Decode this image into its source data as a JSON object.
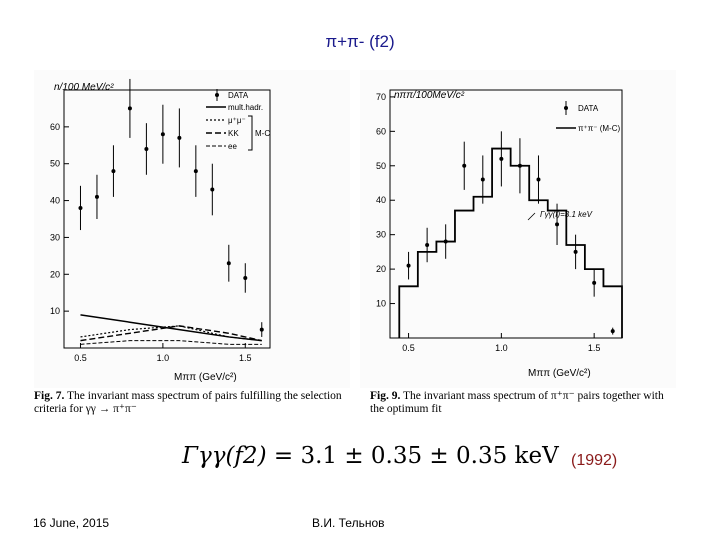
{
  "slide": {
    "title": "π+π- (f2)",
    "year": "(1992)",
    "footer_date": "16 June, 2015",
    "footer_author": "В.И. Тельнов"
  },
  "formula": {
    "lhs": "Γγγ(f2)",
    "text": "= 3.1 ± 0.35 ± 0.35 keV"
  },
  "figures": [
    {
      "caption_label": "Fig. 7.",
      "caption_text": " The invariant mass spectrum of pairs fulfilling the selection criteria for γγ → π⁺π⁻",
      "ylabel": "n/100 MeV/c²",
      "xlabel": "Mππ (GeV/c²)",
      "legend": [
        "DATA",
        "mult.hadr.",
        "μ⁺μ⁻",
        "KK",
        "ee",
        "M-C"
      ]
    },
    {
      "caption_label": "Fig. 9.",
      "caption_text": " The invariant mass spectrum of π⁺π⁻ pairs together with the optimum fit",
      "ylabel": "nππ/100MeV/c²",
      "xlabel": "Mππ (GeV/c²)",
      "legend": [
        "DATA",
        "π⁺π⁻ (M-C)"
      ],
      "annotation": "Γγγ(f)=3.1 keV"
    }
  ],
  "chart_data": [
    {
      "type": "scatter",
      "x_ticks": [
        "0.5",
        "1.0",
        "1.5"
      ],
      "y_ticks": [
        "10",
        "20",
        "30",
        "40",
        "50",
        "60"
      ],
      "xlim": [
        0.4,
        1.65
      ],
      "ylim": [
        0,
        70
      ],
      "grid": false,
      "legend_position": "top-right",
      "series": [
        {
          "name": "DATA",
          "x": [
            0.5,
            0.6,
            0.7,
            0.8,
            0.9,
            1.0,
            1.1,
            1.2,
            1.3,
            1.4,
            1.5,
            1.6
          ],
          "y": [
            38,
            41,
            48,
            65,
            54,
            58,
            57,
            48,
            43,
            23,
            19,
            5
          ],
          "err": [
            6,
            6,
            7,
            8,
            7,
            8,
            8,
            7,
            7,
            5,
            4,
            2
          ]
        },
        {
          "name": "mult.hadr.",
          "x": [
            0.5,
            0.8,
            1.1,
            1.4,
            1.6
          ],
          "y": [
            9,
            7,
            5,
            3,
            2
          ]
        },
        {
          "name": "μ⁺μ⁻",
          "x": [
            0.5,
            0.8,
            1.1,
            1.4,
            1.6
          ],
          "y": [
            3,
            5,
            6,
            3,
            2
          ]
        },
        {
          "name": "KK",
          "x": [
            0.5,
            0.8,
            1.1,
            1.4,
            1.6
          ],
          "y": [
            2,
            4,
            6,
            4,
            2
          ]
        },
        {
          "name": "ee",
          "x": [
            0.5,
            0.8,
            1.1,
            1.4,
            1.6
          ],
          "y": [
            1,
            2,
            2,
            1,
            1
          ]
        }
      ]
    },
    {
      "type": "line",
      "x_ticks": [
        "0.5",
        "1.0",
        "1.5"
      ],
      "y_ticks": [
        "10",
        "20",
        "30",
        "40",
        "50",
        "60",
        "70"
      ],
      "xlim": [
        0.4,
        1.65
      ],
      "ylim": [
        0,
        72
      ],
      "grid": false,
      "legend_position": "top-right",
      "series": [
        {
          "name": "DATA",
          "x": [
            0.5,
            0.6,
            0.7,
            0.8,
            0.9,
            1.0,
            1.1,
            1.2,
            1.3,
            1.4,
            1.5,
            1.6
          ],
          "y": [
            21,
            27,
            28,
            50,
            46,
            52,
            50,
            46,
            33,
            25,
            16,
            2
          ],
          "err": [
            4,
            5,
            5,
            7,
            7,
            8,
            8,
            7,
            6,
            5,
            4,
            1
          ]
        },
        {
          "name": "π⁺π⁻ (M-C)",
          "bin_edges": [
            0.45,
            0.55,
            0.65,
            0.75,
            0.85,
            0.95,
            1.05,
            1.15,
            1.25,
            1.35,
            1.45,
            1.55,
            1.65
          ],
          "y": [
            15,
            25,
            28,
            37,
            41,
            55,
            50,
            40,
            37,
            27,
            20,
            15
          ]
        }
      ]
    }
  ]
}
